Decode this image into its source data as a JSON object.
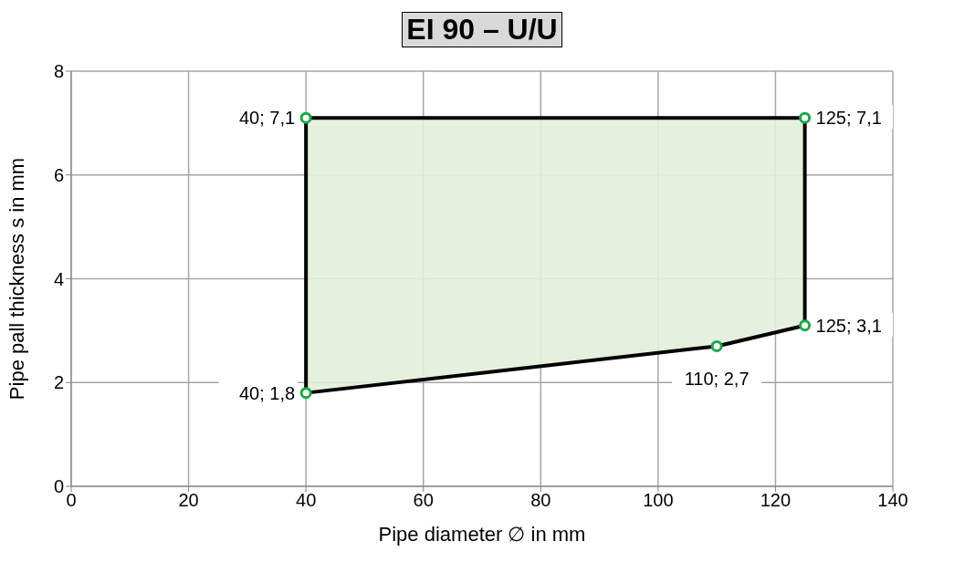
{
  "chart_data": {
    "type": "area",
    "title": "EI 90 – U/U",
    "xlabel": "Pipe diameter ∅ in mm",
    "ylabel": "Pipe pall thickness s in mm",
    "series": [
      {
        "color": "#e2efda",
        "x": [
          40,
          125,
          125,
          110,
          40
        ],
        "values": [
          7.1,
          7.1,
          3.1,
          2.7,
          1.8
        ],
        "value_labels": [
          "40; 7,1",
          "125; 7,1",
          "125; 3,1",
          "110; 2,7",
          "40; 1,8"
        ]
      }
    ],
    "xlim": [
      0,
      140
    ],
    "xticks": [
      0,
      20,
      40,
      60,
      80,
      100,
      120,
      140
    ],
    "ylim": [
      0,
      8
    ],
    "yticks": [
      0,
      2,
      4,
      6,
      8
    ],
    "grid": true,
    "marker": "circle"
  }
}
